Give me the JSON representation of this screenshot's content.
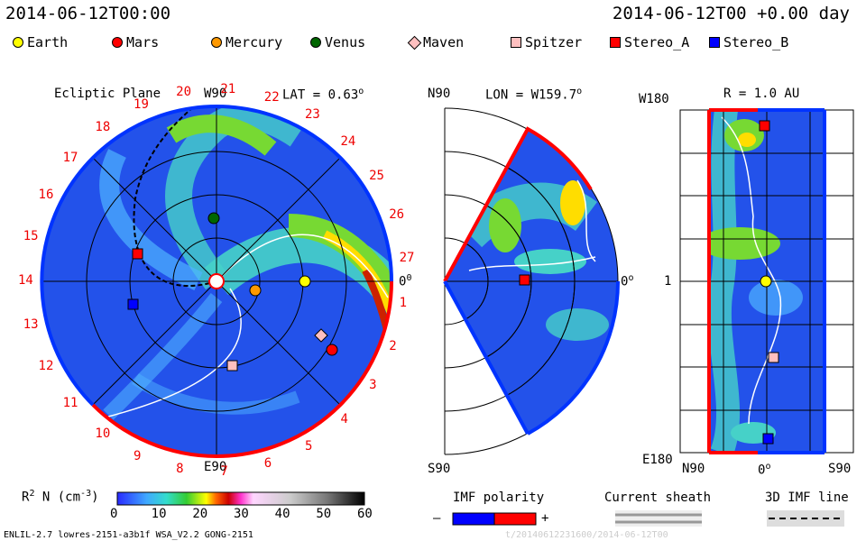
{
  "header": {
    "left_datetime": "2014-06-12T00:00",
    "right_datetime": "2014-06-12T00 +0.00 day"
  },
  "legend": [
    {
      "label": "Earth",
      "icon": "circle",
      "color": "#ffff00"
    },
    {
      "label": "Mars",
      "icon": "circle",
      "color": "#ff0000"
    },
    {
      "label": "Mercury",
      "icon": "circle",
      "color": "#ff9900"
    },
    {
      "label": "Venus",
      "icon": "circle",
      "color": "#006600"
    },
    {
      "label": "Maven",
      "icon": "diamond",
      "color": "#ffc0c0"
    },
    {
      "label": "Spitzer",
      "icon": "square",
      "color": "#ffc0c0"
    },
    {
      "label": "Stereo_A",
      "icon": "square",
      "color": "#ff0000"
    },
    {
      "label": "Stereo_B",
      "icon": "square",
      "color": "#0000ff"
    }
  ],
  "panels": {
    "ecliptic": {
      "title": "Ecliptic Plane",
      "top_label": "W90",
      "bottom_label": "E90",
      "right_label": "0",
      "right_label_sup": "0",
      "lat_label": "LAT = 0.63",
      "lat_sup": "o",
      "sector_numbers": [
        "1",
        "2",
        "3",
        "4",
        "5",
        "6",
        "7",
        "8",
        "9",
        "10",
        "11",
        "12",
        "13",
        "14",
        "15",
        "16",
        "17",
        "18",
        "19",
        "20",
        "21",
        "22",
        "23",
        "24",
        "25",
        "26",
        "27"
      ]
    },
    "meridional": {
      "top_label": "N90",
      "bottom_label": "S90",
      "right_label": "0",
      "right_label_sup": "o",
      "lon_label": "LON = W159.7",
      "lon_sup": "o"
    },
    "map": {
      "title": "R = 1.0 AU",
      "top_left": "W180",
      "mid_left": "1",
      "bottom_left": "E180",
      "x_left": "N90",
      "x_mid": "0",
      "x_mid_sup": "o",
      "x_right": "S90"
    }
  },
  "colorbar": {
    "label": "R",
    "label_sup": "2",
    "label_rest": " N (cm",
    "label_rest_sup": "-3",
    "label_end": ")",
    "ticks": [
      "0",
      "10",
      "20",
      "30",
      "40",
      "50",
      "60"
    ]
  },
  "bottom_legends": {
    "imf_polarity": "IMF polarity",
    "minus": "–",
    "plus": "+",
    "current_sheath": "Current sheath",
    "imf_line": "3D IMF line"
  },
  "footer": {
    "left": "ENLIL-2.7 lowres-2151-a3b1f WSA_V2.2 GONG-2151",
    "right_faint": "t/20140612231600/2014-06-12T00"
  },
  "colors": {
    "background_field": "#2255ee",
    "accent_red": "#ff0000",
    "accent_blue": "#0033ff"
  }
}
